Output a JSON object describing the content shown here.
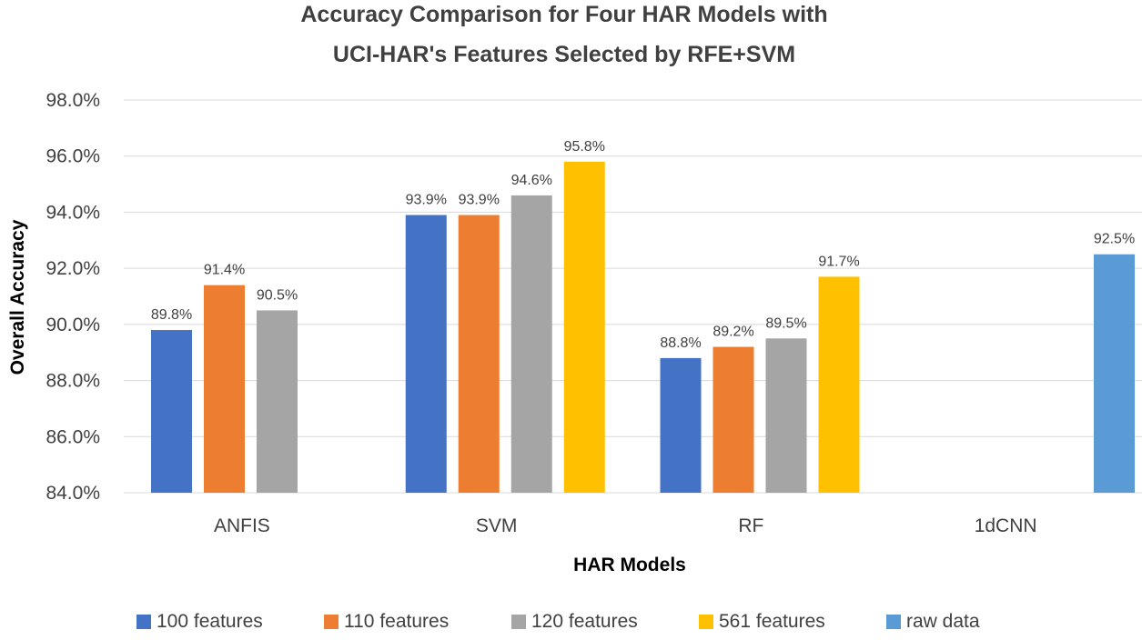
{
  "chart_data": {
    "type": "bar",
    "title": [
      "Accuracy Comparison for Four HAR Models with",
      "UCI-HAR's Features Selected by RFE+SVM"
    ],
    "xlabel": "HAR Models",
    "ylabel": "Overall Accuracy",
    "ylim": [
      84.0,
      98.0
    ],
    "yticks": [
      84.0,
      86.0,
      88.0,
      90.0,
      92.0,
      94.0,
      96.0,
      98.0
    ],
    "ytick_labels": [
      "84.0%",
      "86.0%",
      "88.0%",
      "90.0%",
      "92.0%",
      "94.0%",
      "96.0%",
      "98.0%"
    ],
    "grid": true,
    "legend_position": "bottom",
    "categories": [
      "ANFIS",
      "SVM",
      "RF",
      "1dCNN"
    ],
    "series": [
      {
        "name": "100 features",
        "color": "#4472c4",
        "values": [
          89.8,
          93.9,
          88.8,
          null
        ],
        "labels": [
          "89.8%",
          "93.9%",
          "88.8%",
          null
        ]
      },
      {
        "name": "110 features",
        "color": "#ed7d31",
        "values": [
          91.4,
          93.9,
          89.2,
          null
        ],
        "labels": [
          "91.4%",
          "93.9%",
          "89.2%",
          null
        ]
      },
      {
        "name": "120 features",
        "color": "#a5a5a5",
        "values": [
          90.5,
          94.6,
          89.5,
          null
        ],
        "labels": [
          "90.5%",
          "94.6%",
          "89.5%",
          null
        ]
      },
      {
        "name": "561 features",
        "color": "#ffc000",
        "values": [
          null,
          95.8,
          91.7,
          null
        ],
        "labels": [
          null,
          "95.8%",
          "91.7%",
          null
        ]
      },
      {
        "name": "raw data",
        "color": "#5b9bd5",
        "values": [
          null,
          null,
          null,
          92.5
        ],
        "labels": [
          null,
          null,
          null,
          "92.5%"
        ]
      }
    ]
  }
}
